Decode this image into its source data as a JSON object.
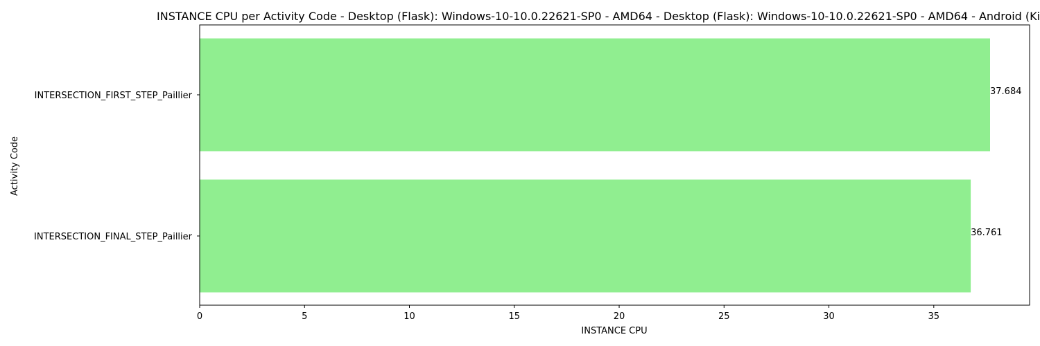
{
  "chart_data": {
    "type": "bar",
    "orientation": "horizontal",
    "title": "INSTANCE CPU per Activity Code - Desktop (Flask): Windows-10-10.0.22621-SP0 - AMD64 - Desktop (Flask): Windows-10-10.0.22621-SP0 - AMD64 - Android (Kivy): android",
    "xlabel": "INSTANCE CPU",
    "ylabel": "Activity Code",
    "categories": [
      "INTERSECTION_FIRST_STEP_Paillier",
      "INTERSECTION_FINAL_STEP_Paillier"
    ],
    "values": [
      37.684,
      36.761
    ],
    "value_labels": [
      "37.684",
      "36.761"
    ],
    "xlim": [
      0,
      39.5682
    ],
    "xticks": [
      0,
      5,
      10,
      15,
      20,
      25,
      30,
      35
    ],
    "bar_color": "#90ee90",
    "grid": false,
    "legend": "none"
  }
}
